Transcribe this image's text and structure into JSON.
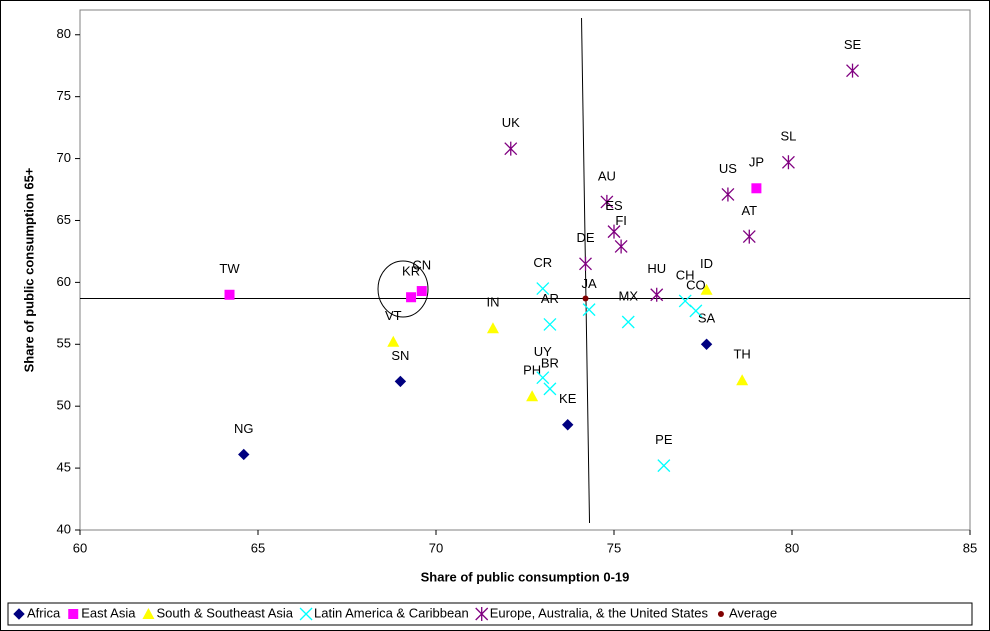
{
  "chart_data": {
    "type": "scatter",
    "x_label": "Share of public consumption 0-19",
    "y_label": "Share of public consumption 65+",
    "xlim": [
      60,
      85
    ],
    "xticks": [
      60,
      65,
      70,
      75,
      80,
      85
    ],
    "ylim": [
      40,
      82
    ],
    "yticks": [
      40,
      45,
      50,
      55,
      60,
      65,
      70,
      75,
      80
    ],
    "legend": "bottom",
    "series": [
      {
        "name": "Africa",
        "color": "#000080",
        "marker": "diamond",
        "labels": [
          "NG",
          "SN",
          "KE",
          "SA"
        ],
        "x": [
          64.6,
          69.0,
          73.7,
          77.6
        ],
        "y": [
          46.1,
          52.0,
          48.5,
          55.0
        ]
      },
      {
        "name": "East Asia",
        "color": "#ff00ff",
        "marker": "square",
        "labels": [
          "TW",
          "KR",
          "CN",
          "JP"
        ],
        "x": [
          64.2,
          69.3,
          69.6,
          79.0
        ],
        "y": [
          59.0,
          58.8,
          59.3,
          67.6
        ]
      },
      {
        "name": "South & Southeast Asia",
        "color": "#ffff00",
        "marker": "triangle",
        "labels": [
          "VT",
          "IN",
          "PH",
          "ID",
          "TH"
        ],
        "x": [
          68.8,
          71.6,
          72.7,
          77.6,
          78.6
        ],
        "y": [
          55.2,
          56.3,
          50.8,
          59.4,
          52.1
        ]
      },
      {
        "name": "Latin America & Caribbean",
        "color": "#00ffff",
        "marker": "x",
        "labels": [
          "CR",
          "AR",
          "JA",
          "UY",
          "BR",
          "MX",
          "CH",
          "CO",
          "PE"
        ],
        "x": [
          73.0,
          73.2,
          74.3,
          73.0,
          73.2,
          75.4,
          77.0,
          77.3,
          76.4
        ],
        "y": [
          59.5,
          56.6,
          57.8,
          52.3,
          51.4,
          56.8,
          58.5,
          57.7,
          45.2
        ]
      },
      {
        "name": "Europe, Australia, & the United States",
        "color": "#800080",
        "marker": "asterisk",
        "labels": [
          "SE",
          "UK",
          "AU",
          "ES",
          "FI",
          "DE",
          "HU",
          "US",
          "SL",
          "AT"
        ],
        "x": [
          81.7,
          72.1,
          74.8,
          75.0,
          75.2,
          74.2,
          76.2,
          78.2,
          79.9,
          78.8
        ],
        "y": [
          77.1,
          70.8,
          66.5,
          64.1,
          62.9,
          61.5,
          59.0,
          67.1,
          69.7,
          63.7
        ]
      },
      {
        "name": "Average",
        "color": "#800000",
        "marker": "circle",
        "x": [
          74.2
        ],
        "y": [
          58.7
        ]
      }
    ]
  }
}
